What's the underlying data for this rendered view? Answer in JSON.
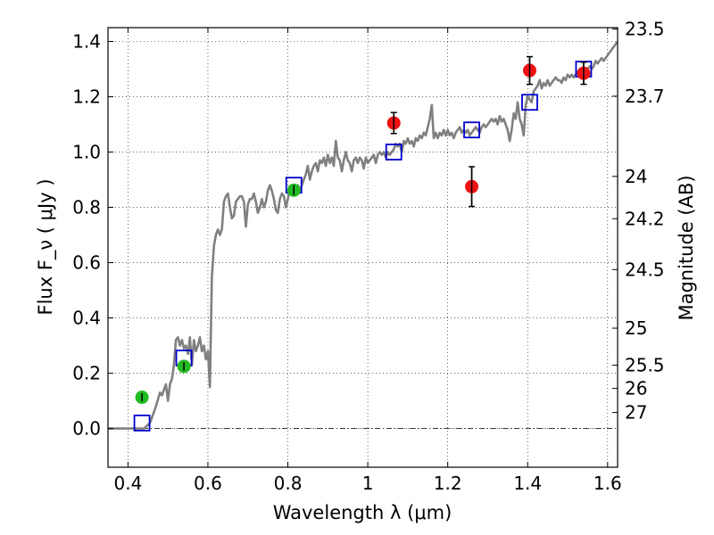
{
  "chart_data": {
    "type": "scatter",
    "xlabel": "Wavelength  λ (μm)",
    "ylabel": "Flux  F_ν  ( μJy )",
    "y2label": "Magnitude (AB)",
    "xlim": [
      0.35,
      1.625
    ],
    "ylim": [
      -0.14,
      1.45
    ],
    "grid": true,
    "legend": "none",
    "x_ticks": [
      {
        "value": 0.4,
        "label": "0.4"
      },
      {
        "value": 0.6,
        "label": "0.6"
      },
      {
        "value": 0.8,
        "label": "0.8"
      },
      {
        "value": 1.0,
        "label": "1"
      },
      {
        "value": 1.2,
        "label": "1.2"
      },
      {
        "value": 1.4,
        "label": "1.4"
      },
      {
        "value": 1.6,
        "label": "1.6"
      }
    ],
    "y_ticks": [
      {
        "value": 0.0,
        "label": "0.0"
      },
      {
        "value": 0.2,
        "label": "0.2"
      },
      {
        "value": 0.4,
        "label": "0.4"
      },
      {
        "value": 0.6,
        "label": "0.6"
      },
      {
        "value": 0.8,
        "label": "0.8"
      },
      {
        "value": 1.0,
        "label": "1.0"
      },
      {
        "value": 1.2,
        "label": "1.2"
      },
      {
        "value": 1.4,
        "label": "1.4"
      }
    ],
    "y2_ticks": [
      {
        "label": "23.5",
        "flux": 1.445
      },
      {
        "label": "23.7",
        "flux": 1.202
      },
      {
        "label": "24",
        "flux": 0.912
      },
      {
        "label": "24.2",
        "flux": 0.759
      },
      {
        "label": "24.5",
        "flux": 0.575
      },
      {
        "label": "25",
        "flux": 0.363
      },
      {
        "label": "25.5",
        "flux": 0.229
      },
      {
        "label": "26",
        "flux": 0.145
      },
      {
        "label": "27",
        "flux": 0.058
      }
    ],
    "series": [
      {
        "kind": "line",
        "color": "#808080",
        "points": [
          [
            0.35,
            0.0
          ],
          [
            0.44,
            0.0
          ],
          [
            0.455,
            0.02
          ],
          [
            0.47,
            0.08
          ],
          [
            0.48,
            0.13
          ],
          [
            0.485,
            0.12
          ],
          [
            0.49,
            0.14
          ],
          [
            0.495,
            0.16
          ],
          [
            0.5,
            0.1
          ],
          [
            0.505,
            0.16
          ],
          [
            0.51,
            0.18
          ],
          [
            0.515,
            0.23
          ],
          [
            0.52,
            0.32
          ],
          [
            0.525,
            0.33
          ],
          [
            0.53,
            0.3
          ],
          [
            0.535,
            0.32
          ],
          [
            0.54,
            0.29
          ],
          [
            0.545,
            0.3
          ],
          [
            0.55,
            0.27
          ],
          [
            0.555,
            0.33
          ],
          [
            0.56,
            0.23
          ],
          [
            0.565,
            0.32
          ],
          [
            0.57,
            0.28
          ],
          [
            0.575,
            0.3
          ],
          [
            0.58,
            0.33
          ],
          [
            0.585,
            0.28
          ],
          [
            0.59,
            0.3
          ],
          [
            0.595,
            0.25
          ],
          [
            0.6,
            0.28
          ],
          [
            0.605,
            0.15
          ],
          [
            0.61,
            0.55
          ],
          [
            0.615,
            0.66
          ],
          [
            0.62,
            0.7
          ],
          [
            0.625,
            0.72
          ],
          [
            0.63,
            0.7
          ],
          [
            0.635,
            0.72
          ],
          [
            0.64,
            0.82
          ],
          [
            0.645,
            0.84
          ],
          [
            0.65,
            0.85
          ],
          [
            0.655,
            0.8
          ],
          [
            0.66,
            0.76
          ],
          [
            0.665,
            0.77
          ],
          [
            0.67,
            0.82
          ],
          [
            0.675,
            0.83
          ],
          [
            0.68,
            0.84
          ],
          [
            0.685,
            0.84
          ],
          [
            0.69,
            0.82
          ],
          [
            0.695,
            0.73
          ],
          [
            0.7,
            0.81
          ],
          [
            0.705,
            0.83
          ],
          [
            0.71,
            0.83
          ],
          [
            0.715,
            0.85
          ],
          [
            0.72,
            0.82
          ],
          [
            0.725,
            0.78
          ],
          [
            0.73,
            0.8
          ],
          [
            0.735,
            0.83
          ],
          [
            0.74,
            0.8
          ],
          [
            0.745,
            0.82
          ],
          [
            0.75,
            0.86
          ],
          [
            0.755,
            0.88
          ],
          [
            0.76,
            0.86
          ],
          [
            0.765,
            0.83
          ],
          [
            0.77,
            0.79
          ],
          [
            0.775,
            0.78
          ],
          [
            0.78,
            0.83
          ],
          [
            0.785,
            0.85
          ],
          [
            0.79,
            0.84
          ],
          [
            0.795,
            0.8
          ],
          [
            0.8,
            0.83
          ],
          [
            0.805,
            0.87
          ],
          [
            0.81,
            0.86
          ],
          [
            0.815,
            0.85
          ],
          [
            0.82,
            0.87
          ],
          [
            0.825,
            0.88
          ],
          [
            0.83,
            0.86
          ],
          [
            0.835,
            0.88
          ],
          [
            0.84,
            0.9
          ],
          [
            0.845,
            0.92
          ],
          [
            0.85,
            0.95
          ],
          [
            0.855,
            0.9
          ],
          [
            0.86,
            0.93
          ],
          [
            0.865,
            0.95
          ],
          [
            0.87,
            0.96
          ],
          [
            0.875,
            0.93
          ],
          [
            0.88,
            0.97
          ],
          [
            0.885,
            0.96
          ],
          [
            0.89,
            0.98
          ],
          [
            0.895,
            0.95
          ],
          [
            0.9,
            0.99
          ],
          [
            0.905,
            0.96
          ],
          [
            0.91,
            0.98
          ],
          [
            0.915,
            0.95
          ],
          [
            0.92,
            1.04
          ],
          [
            0.925,
            0.98
          ],
          [
            0.93,
            0.97
          ],
          [
            0.935,
            0.93
          ],
          [
            0.94,
            0.97
          ],
          [
            0.945,
            1.0
          ],
          [
            0.95,
            0.97
          ],
          [
            0.955,
            0.96
          ],
          [
            0.96,
            0.93
          ],
          [
            0.965,
            0.97
          ],
          [
            0.97,
            0.98
          ],
          [
            0.975,
            0.96
          ],
          [
            0.98,
            0.98
          ],
          [
            0.985,
            0.97
          ],
          [
            0.99,
            0.94
          ],
          [
            0.995,
            0.98
          ],
          [
            1.0,
            0.96
          ],
          [
            1.005,
            0.97
          ],
          [
            1.01,
            0.98
          ],
          [
            1.015,
            0.99
          ],
          [
            1.02,
            0.96
          ],
          [
            1.025,
            0.99
          ],
          [
            1.03,
            1.0
          ],
          [
            1.035,
            0.99
          ],
          [
            1.04,
            1.0
          ],
          [
            1.045,
            0.98
          ],
          [
            1.05,
            1.0
          ],
          [
            1.055,
            0.99
          ],
          [
            1.06,
            1.0
          ],
          [
            1.065,
            1.01
          ],
          [
            1.07,
            1.03
          ],
          [
            1.075,
            1.02
          ],
          [
            1.08,
            1.03
          ],
          [
            1.085,
            1.0
          ],
          [
            1.09,
            1.04
          ],
          [
            1.095,
            1.03
          ],
          [
            1.1,
            1.05
          ],
          [
            1.105,
            1.03
          ],
          [
            1.11,
            1.04
          ],
          [
            1.115,
            1.02
          ],
          [
            1.12,
            1.05
          ],
          [
            1.125,
            1.04
          ],
          [
            1.13,
            1.06
          ],
          [
            1.135,
            1.05
          ],
          [
            1.14,
            1.07
          ],
          [
            1.145,
            1.06
          ],
          [
            1.15,
            1.09
          ],
          [
            1.155,
            1.12
          ],
          [
            1.16,
            1.17
          ],
          [
            1.165,
            1.05
          ],
          [
            1.17,
            1.07
          ],
          [
            1.175,
            1.05
          ],
          [
            1.18,
            1.07
          ],
          [
            1.185,
            1.06
          ],
          [
            1.19,
            1.08
          ],
          [
            1.195,
            1.06
          ],
          [
            1.2,
            1.08
          ],
          [
            1.205,
            1.06
          ],
          [
            1.21,
            1.07
          ],
          [
            1.215,
            1.05
          ],
          [
            1.22,
            1.07
          ],
          [
            1.225,
            1.08
          ],
          [
            1.23,
            1.09
          ],
          [
            1.235,
            1.07
          ],
          [
            1.24,
            1.08
          ],
          [
            1.245,
            1.07
          ],
          [
            1.25,
            1.08
          ],
          [
            1.255,
            1.06
          ],
          [
            1.26,
            1.07
          ],
          [
            1.265,
            1.08
          ],
          [
            1.27,
            1.09
          ],
          [
            1.275,
            1.08
          ],
          [
            1.28,
            1.07
          ],
          [
            1.285,
            1.09
          ],
          [
            1.29,
            1.1
          ],
          [
            1.295,
            1.09
          ],
          [
            1.3,
            1.1
          ],
          [
            1.305,
            1.11
          ],
          [
            1.31,
            1.12
          ],
          [
            1.315,
            1.11
          ],
          [
            1.32,
            1.12
          ],
          [
            1.325,
            1.1
          ],
          [
            1.33,
            1.13
          ],
          [
            1.335,
            1.11
          ],
          [
            1.34,
            1.12
          ],
          [
            1.345,
            1.1
          ],
          [
            1.35,
            1.08
          ],
          [
            1.355,
            1.04
          ],
          [
            1.36,
            1.08
          ],
          [
            1.365,
            1.14
          ],
          [
            1.37,
            1.12
          ],
          [
            1.375,
            1.18
          ],
          [
            1.38,
            1.12
          ],
          [
            1.385,
            1.1
          ],
          [
            1.39,
            1.06
          ],
          [
            1.395,
            1.17
          ],
          [
            1.4,
            1.2
          ],
          [
            1.405,
            1.19
          ],
          [
            1.41,
            1.18
          ],
          [
            1.415,
            1.22
          ],
          [
            1.42,
            1.23
          ],
          [
            1.425,
            1.24
          ],
          [
            1.43,
            1.26
          ],
          [
            1.435,
            1.23
          ],
          [
            1.44,
            1.25
          ],
          [
            1.445,
            1.24
          ],
          [
            1.45,
            1.26
          ],
          [
            1.455,
            1.24
          ],
          [
            1.46,
            1.25
          ],
          [
            1.465,
            1.26
          ],
          [
            1.47,
            1.27
          ],
          [
            1.475,
            1.26
          ],
          [
            1.48,
            1.26
          ],
          [
            1.485,
            1.25
          ],
          [
            1.49,
            1.27
          ],
          [
            1.495,
            1.26
          ],
          [
            1.5,
            1.28
          ],
          [
            1.505,
            1.27
          ],
          [
            1.51,
            1.28
          ],
          [
            1.515,
            1.27
          ],
          [
            1.52,
            1.28
          ],
          [
            1.525,
            1.29
          ],
          [
            1.53,
            1.3
          ],
          [
            1.535,
            1.29
          ],
          [
            1.54,
            1.3
          ],
          [
            1.545,
            1.29
          ],
          [
            1.55,
            1.3
          ],
          [
            1.555,
            1.31
          ],
          [
            1.56,
            1.3
          ],
          [
            1.565,
            1.31
          ],
          [
            1.57,
            1.33
          ],
          [
            1.575,
            1.32
          ],
          [
            1.58,
            1.33
          ],
          [
            1.585,
            1.34
          ],
          [
            1.59,
            1.33
          ],
          [
            1.595,
            1.34
          ],
          [
            1.6,
            1.35
          ],
          [
            1.605,
            1.36
          ],
          [
            1.61,
            1.37
          ],
          [
            1.615,
            1.38
          ],
          [
            1.625,
            1.4
          ]
        ]
      },
      {
        "kind": "square_markers",
        "color": "#0000cc",
        "points": [
          [
            0.435,
            0.02
          ],
          [
            0.54,
            0.255
          ],
          [
            0.815,
            0.88
          ],
          [
            1.065,
            1.0
          ],
          [
            1.26,
            1.08
          ],
          [
            1.405,
            1.18
          ],
          [
            1.54,
            1.3
          ]
        ]
      },
      {
        "kind": "circle_markers",
        "color": "#22bb22",
        "points": [
          {
            "x": 0.435,
            "y": 0.113,
            "err": 0.015
          },
          {
            "x": 0.54,
            "y": 0.225,
            "err": 0.015
          },
          {
            "x": 0.815,
            "y": 0.862,
            "err": 0.018
          }
        ]
      },
      {
        "kind": "circle_markers",
        "color": "#ee1111",
        "points": [
          {
            "x": 1.065,
            "y": 1.105,
            "err": 0.038
          },
          {
            "x": 1.26,
            "y": 0.875,
            "err": 0.072
          },
          {
            "x": 1.405,
            "y": 1.295,
            "err": 0.05
          },
          {
            "x": 1.54,
            "y": 1.285,
            "err": 0.04
          }
        ]
      }
    ],
    "hline": {
      "y": 0.0,
      "style": "dash-dot"
    }
  }
}
